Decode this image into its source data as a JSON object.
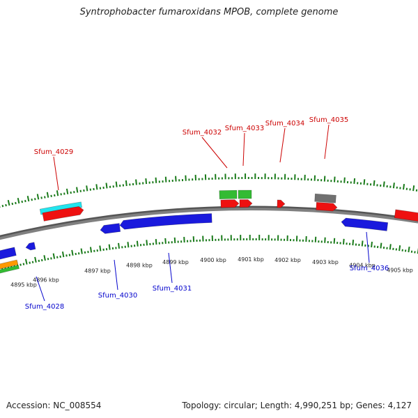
{
  "title": "Syntrophobacter fumaroxidans MPOB, complete genome",
  "accession": "Accession: NC_008554",
  "stats": "Topology: circular; Length: 4,990,251 bp; Genes: 4,127",
  "colors": {
    "forward_label": "#cc0000",
    "reverse_label": "#0000cc",
    "tick": "#1a7a1a",
    "backbone": "#808080",
    "red": "#ee1111",
    "green": "#33bb33",
    "cyan": "#22e5ee",
    "blue": "#1a1add",
    "gray": "#707070",
    "orange": "#ff9900"
  },
  "scale_labels": [
    "4895 kbp",
    "4896 kbp",
    "4897 kbp",
    "4898 kbp",
    "4899 kbp",
    "4900 kbp",
    "4901 kbp",
    "4902 kbp",
    "4903 kbp",
    "4904 kbp",
    "4905 kbp"
  ],
  "gene_labels": {
    "forward": [
      "Sfum_4029",
      "Sfum_4032",
      "Sfum_4033",
      "Sfum_4034",
      "Sfum_4035"
    ],
    "reverse": [
      "Sfum_4028",
      "Sfum_4030",
      "Sfum_4031",
      "Sfum_4036"
    ]
  }
}
